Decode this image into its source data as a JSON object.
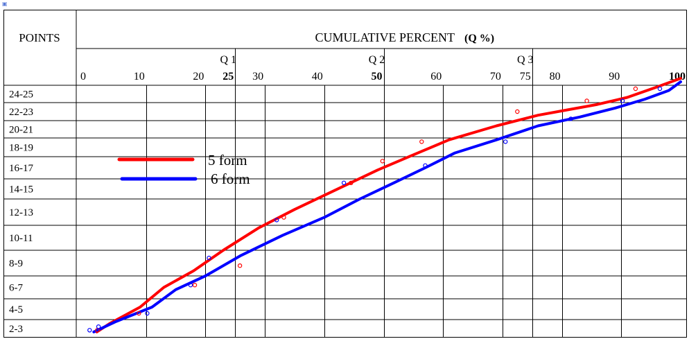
{
  "corner_icon": "broken-image-icon",
  "header": {
    "points_label": "POINTS",
    "title": "CUMULATIVE PERCENT",
    "title_unit": "(Q %)"
  },
  "chart_data": {
    "type": "line",
    "title": "CUMULATIVE PERCENT (Q %)",
    "xlabel": "CUMULATIVE PERCENT (Q %)",
    "ylabel": "POINTS",
    "xlim": [
      0,
      100
    ],
    "x_ticks": [
      {
        "value": 0,
        "label": "0",
        "bold": false
      },
      {
        "value": 10,
        "label": "10",
        "bold": false
      },
      {
        "value": 20,
        "label": "20",
        "bold": false
      },
      {
        "value": 25,
        "label": "25",
        "bold": true
      },
      {
        "value": 30,
        "label": "30",
        "bold": false
      },
      {
        "value": 40,
        "label": "40",
        "bold": false
      },
      {
        "value": 50,
        "label": "50",
        "bold": true
      },
      {
        "value": 60,
        "label": "60",
        "bold": false
      },
      {
        "value": 70,
        "label": "70",
        "bold": false
      },
      {
        "value": 75,
        "label": "75",
        "bold": false
      },
      {
        "value": 80,
        "label": "80",
        "bold": false
      },
      {
        "value": 90,
        "label": "90",
        "bold": false
      },
      {
        "value": 100,
        "label": "100",
        "bold": true
      }
    ],
    "quartile_labels": [
      {
        "value": 25,
        "label": "Q 1"
      },
      {
        "value": 50,
        "label": "Q 2"
      },
      {
        "value": 75,
        "label": "Q 3"
      }
    ],
    "categories": [
      "24-25",
      "22-23",
      "20-21",
      "18-19",
      "16-17",
      "14-15",
      "12-13",
      "10-11",
      "8-9",
      "6-7",
      "4-5",
      "2-3"
    ],
    "grid": true,
    "legend_position": "left-center",
    "series": [
      {
        "name": "5 form",
        "color": "#ff0000",
        "line": [
          [
            1.7,
            0.3
          ],
          [
            4,
            0.8
          ],
          [
            9,
            1.6
          ],
          [
            13,
            2.5
          ],
          [
            18,
            3.2
          ],
          [
            23,
            4.0
          ],
          [
            29,
            4.9
          ],
          [
            35,
            5.6
          ],
          [
            43,
            6.6
          ],
          [
            49,
            7.4
          ],
          [
            55,
            8.1
          ],
          [
            61,
            8.9
          ],
          [
            69,
            9.7
          ],
          [
            76,
            10.3
          ],
          [
            81,
            10.6
          ],
          [
            86,
            10.9
          ],
          [
            91,
            11.3
          ],
          [
            96,
            11.9
          ],
          [
            100,
            12.4
          ]
        ],
        "points": [
          [
            1.8,
            0.4
          ],
          [
            8.8,
            1.3
          ],
          [
            18.2,
            2.6
          ],
          [
            25.8,
            3.4
          ],
          [
            33.2,
            5.3
          ],
          [
            44.5,
            6.8
          ],
          [
            49.8,
            7.8
          ],
          [
            56.4,
            8.8
          ],
          [
            72.5,
            10.5
          ],
          [
            84.2,
            11.1
          ],
          [
            92.4,
            11.8
          ]
        ]
      },
      {
        "name": "6 form",
        "color": "#0000ff",
        "line": [
          [
            1.2,
            0.3
          ],
          [
            5,
            0.9
          ],
          [
            11,
            1.6
          ],
          [
            15,
            2.4
          ],
          [
            20,
            3.0
          ],
          [
            26,
            3.8
          ],
          [
            33,
            4.6
          ],
          [
            40,
            5.3
          ],
          [
            46,
            6.0
          ],
          [
            51,
            6.7
          ],
          [
            57,
            7.5
          ],
          [
            62,
            8.2
          ],
          [
            69,
            8.9
          ],
          [
            76,
            9.7
          ],
          [
            83,
            10.2
          ],
          [
            89,
            10.7
          ],
          [
            94,
            11.2
          ],
          [
            98,
            11.7
          ],
          [
            100,
            12.2
          ]
        ],
        "points": [
          [
            0.5,
            0.4
          ],
          [
            2,
            0.6
          ],
          [
            10.2,
            1.3
          ],
          [
            17.5,
            2.6
          ],
          [
            20.6,
            3.7
          ],
          [
            32,
            5.2
          ],
          [
            43.3,
            6.8
          ],
          [
            57,
            7.6
          ],
          [
            70.5,
            8.8
          ],
          [
            81.5,
            10.1
          ],
          [
            90.2,
            11.1
          ],
          [
            96.5,
            11.8
          ]
        ]
      }
    ]
  }
}
